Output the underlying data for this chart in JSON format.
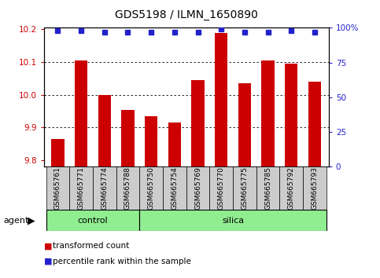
{
  "title": "GDS5198 / ILMN_1650890",
  "samples": [
    "GSM665761",
    "GSM665771",
    "GSM665774",
    "GSM665788",
    "GSM665750",
    "GSM665754",
    "GSM665769",
    "GSM665770",
    "GSM665775",
    "GSM665785",
    "GSM665792",
    "GSM665793"
  ],
  "bar_values": [
    9.865,
    10.105,
    10.0,
    9.955,
    9.935,
    9.915,
    10.045,
    10.19,
    10.035,
    10.105,
    10.095,
    10.04
  ],
  "percentile_values": [
    98,
    98,
    97,
    97,
    97,
    97,
    97,
    99,
    97,
    97,
    98,
    97
  ],
  "bar_color": "#cc0000",
  "dot_color": "#2222cc",
  "ylim_left": [
    9.78,
    10.205
  ],
  "ylim_right": [
    0,
    100
  ],
  "yticks_left": [
    9.8,
    9.9,
    10.0,
    10.1,
    10.2
  ],
  "yticks_right": [
    0,
    25,
    50,
    75,
    100
  ],
  "ytick_labels_right": [
    "0",
    "25",
    "50",
    "75",
    "100%"
  ],
  "control_count": 4,
  "silica_count": 8,
  "control_label": "control",
  "silica_label": "silica",
  "agent_label": "agent",
  "legend_red": "transformed count",
  "legend_blue": "percentile rank within the sample",
  "bar_bottom": 9.78,
  "green_color": "#90ee90",
  "gray_color": "#cccccc",
  "title_fontsize": 10,
  "axis_fontsize": 7.5,
  "label_fontsize": 6.5,
  "agent_fontsize": 8,
  "legend_fontsize": 7.5
}
